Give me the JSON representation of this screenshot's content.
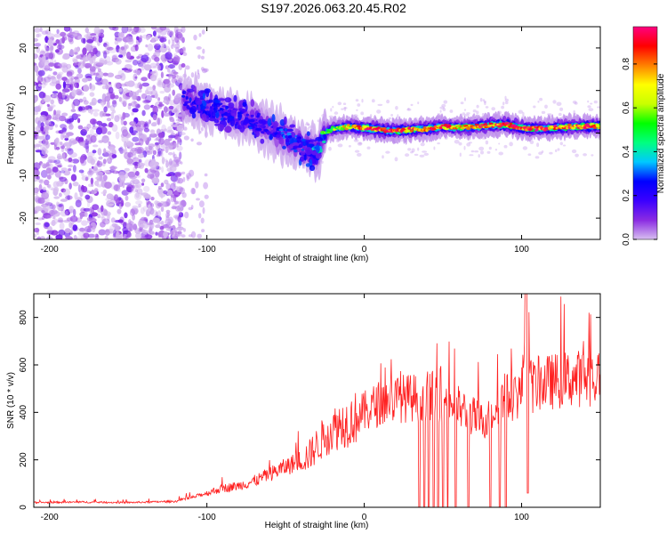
{
  "chart_data": [
    {
      "type": "heatmap",
      "title": "S197.2026.063.20.45.R02",
      "xlabel": "Height of straight line (km)",
      "ylabel": "Frequency (Hz)",
      "xlim": [
        -210,
        150
      ],
      "ylim": [
        -25,
        25
      ],
      "xticks": [
        -200,
        -100,
        0,
        100
      ],
      "yticks": [
        -20,
        -10,
        0,
        10,
        20
      ],
      "colorbar": {
        "label": "Normalized spectral amplitude",
        "range": [
          0,
          0.97
        ],
        "ticks": [
          0.0,
          0.2,
          0.4,
          0.6,
          0.8
        ],
        "tick_labels": [
          "0.0",
          "0.2",
          "0.4",
          "0.6",
          "0.8"
        ],
        "colors": [
          "#d8bff0",
          "#8a2be2",
          "#3b00ff",
          "#0000ff",
          "#00c8ff",
          "#00ff80",
          "#00ff00",
          "#c8ff00",
          "#ffff00",
          "#ff8000",
          "#ff0000",
          "#ff0080"
        ]
      },
      "ridge": {
        "x": [
          -115,
          -100,
          -90,
          -80,
          -70,
          -60,
          -50,
          -40,
          -30,
          -25,
          -20,
          -10,
          0,
          10,
          20,
          30,
          40,
          50,
          60,
          70,
          80,
          90,
          100,
          110,
          120,
          130,
          140,
          150
        ],
        "y": [
          8,
          6,
          5,
          4,
          3,
          1,
          -1,
          -3,
          -5,
          0,
          1,
          1.5,
          1.2,
          0.8,
          0.5,
          0.8,
          1,
          1.5,
          1.3,
          1.5,
          1.8,
          2,
          1.2,
          1,
          1.2,
          1.5,
          1.6,
          1.6
        ],
        "amplitude": [
          0.25,
          0.2,
          0.25,
          0.2,
          0.25,
          0.2,
          0.3,
          0.25,
          0.35,
          0.55,
          0.6,
          0.7,
          0.85,
          0.9,
          0.9,
          0.85,
          0.8,
          0.85,
          0.75,
          0.8,
          0.85,
          0.9,
          0.85,
          0.9,
          0.88,
          0.85,
          0.9,
          0.9
        ]
      },
      "noise_region": [
        -210,
        -115
      ]
    },
    {
      "type": "line",
      "xlabel": "Height of straight line (km)",
      "ylabel": "SNR (10 * v/v)",
      "xlim": [
        -210,
        150
      ],
      "ylim": [
        0,
        900
      ],
      "xticks": [
        -200,
        -100,
        0,
        100
      ],
      "yticks": [
        0,
        200,
        400,
        600,
        800
      ],
      "color": "#ff2020",
      "series": [
        {
          "name": "SNR",
          "x": [
            -210,
            -180,
            -150,
            -120,
            -110,
            -100,
            -90,
            -80,
            -70,
            -60,
            -50,
            -40,
            -35,
            -30,
            -25,
            -20,
            -15,
            -10,
            -5,
            0,
            5,
            10,
            15,
            20,
            25,
            30,
            35,
            40,
            45,
            50,
            55,
            60,
            65,
            70,
            75,
            80,
            85,
            90,
            95,
            100,
            102,
            104,
            106,
            110,
            120,
            130,
            140,
            150
          ],
          "values": [
            20,
            22,
            20,
            25,
            40,
            60,
            80,
            90,
            110,
            140,
            170,
            200,
            220,
            260,
            300,
            330,
            350,
            360,
            380,
            400,
            420,
            440,
            450,
            455,
            460,
            460,
            465,
            470,
            470,
            455,
            440,
            420,
            400,
            380,
            360,
            390,
            440,
            460,
            470,
            480,
            700,
            860,
            500,
            520,
            530,
            540,
            545,
            550
          ]
        }
      ],
      "dropouts": [
        17,
        35,
        38,
        41,
        44,
        47,
        50,
        53,
        58,
        66,
        80,
        86,
        90
      ]
    }
  ]
}
